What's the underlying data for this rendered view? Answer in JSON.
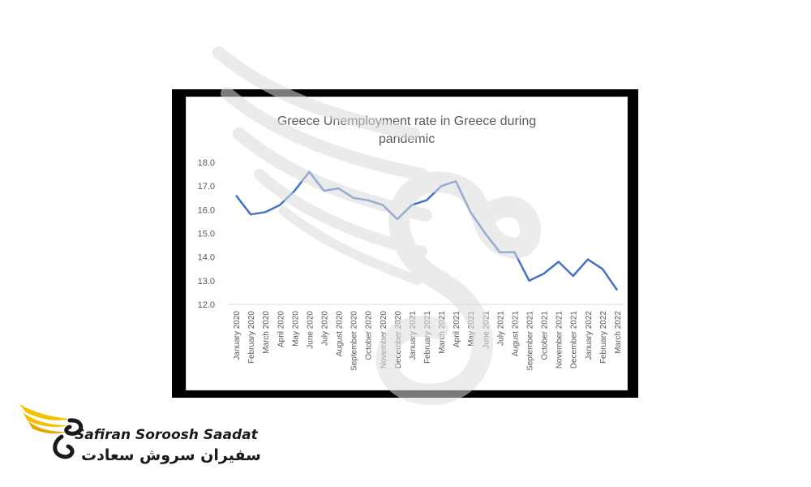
{
  "chart_data": {
    "type": "line",
    "title_line1": "Greece Unemployment rate in Greece during",
    "title_line2": "pandemic",
    "xlabel": "",
    "ylabel": "",
    "ylim": [
      12.0,
      18.0
    ],
    "yticks": [
      "12.0",
      "13.0",
      "14.0",
      "15.0",
      "16.0",
      "17.0",
      "18.0"
    ],
    "grid": false,
    "line_color": "#4472c4",
    "categories": [
      "January 2020",
      "February 2020",
      "March 2020",
      "April 2020",
      "May 2020",
      "June 2020",
      "July 2020",
      "August 2020",
      "September 2020",
      "October 2020",
      "November 2020",
      "December 2020",
      "January 2021",
      "February 2021",
      "March 2021",
      "April 2021",
      "May 2021",
      "June 2021",
      "July 2021",
      "August 2021",
      "September 2021",
      "October 2021",
      "November 2021",
      "December 2021",
      "January 2022",
      "February 2022",
      "March 2022"
    ],
    "series": [
      {
        "values": [
          16.6,
          15.8,
          15.9,
          16.2,
          16.8,
          17.6,
          16.8,
          16.9,
          16.5,
          16.4,
          16.2,
          15.6,
          16.2,
          16.4,
          17.0,
          17.2,
          15.9,
          15.0,
          14.2,
          14.2,
          13.0,
          13.3,
          13.8,
          13.2,
          13.9,
          13.5,
          12.6
        ]
      }
    ]
  },
  "logo": {
    "text_en": "Safiran Soroosh Saadat",
    "text_fa": "سفیران سروش سعادت",
    "accent_color": "#f2c200"
  }
}
